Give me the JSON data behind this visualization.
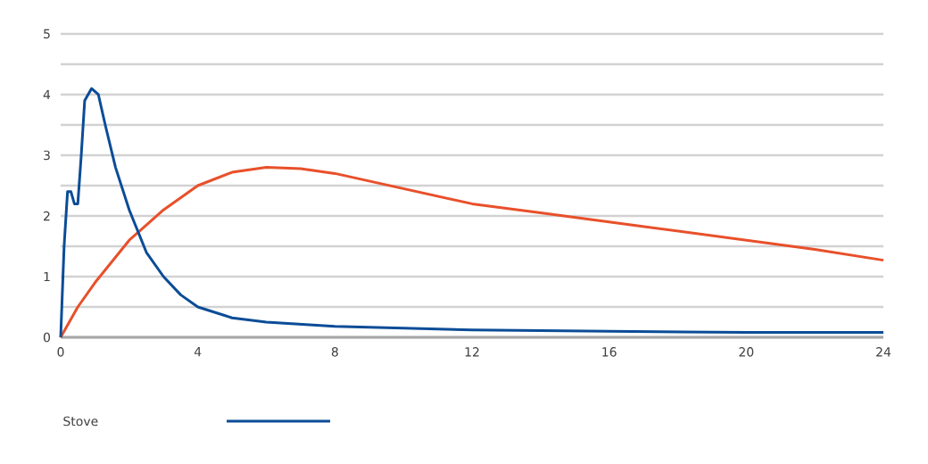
{
  "chart_data": {
    "type": "line",
    "xlim": [
      0,
      24
    ],
    "xticks": [
      0,
      4,
      8,
      12,
      16,
      20,
      24
    ],
    "ylim": [
      0,
      5
    ],
    "yticks": [
      0,
      {
        "value": 0.5,
        "label": null
      },
      1,
      {
        "value": 1.5,
        "label": null
      },
      2,
      {
        "value": 2.5,
        "label": null
      },
      3,
      {
        "value": 3.5,
        "label": null
      },
      4,
      {
        "value": 4.5,
        "label": null
      },
      5
    ],
    "grid": "y",
    "legend": "bottom left",
    "marker": "none",
    "line_style": "solid",
    "series": [
      {
        "color": "#e8502a",
        "x": [
          0,
          0.5,
          1,
          2,
          3,
          4,
          5,
          6,
          7,
          8,
          10,
          12,
          14,
          16,
          18,
          20,
          22,
          24
        ],
        "values": [
          0,
          0.5,
          0.9,
          1.6,
          2.1,
          2.5,
          2.72,
          2.8,
          2.78,
          2.7,
          2.45,
          2.2,
          2.05,
          1.9,
          1.75,
          1.6,
          1.45,
          1.27
        ]
      },
      {
        "name": "Stove",
        "color": "#0b4c97",
        "x": [
          0,
          0.1,
          0.2,
          0.3,
          0.4,
          0.5,
          0.6,
          0.7,
          0.9,
          1.1,
          1.3,
          1.6,
          2,
          2.5,
          3,
          3.5,
          4,
          5,
          6,
          8,
          10,
          12,
          16,
          20,
          24
        ],
        "values": [
          0,
          1.5,
          2.4,
          2.4,
          2.2,
          2.2,
          3.0,
          3.9,
          4.1,
          4.0,
          3.5,
          2.8,
          2.1,
          1.4,
          1.0,
          0.7,
          0.5,
          0.32,
          0.25,
          0.18,
          0.15,
          0.12,
          0.1,
          0.08,
          0.08
        ]
      }
    ]
  }
}
